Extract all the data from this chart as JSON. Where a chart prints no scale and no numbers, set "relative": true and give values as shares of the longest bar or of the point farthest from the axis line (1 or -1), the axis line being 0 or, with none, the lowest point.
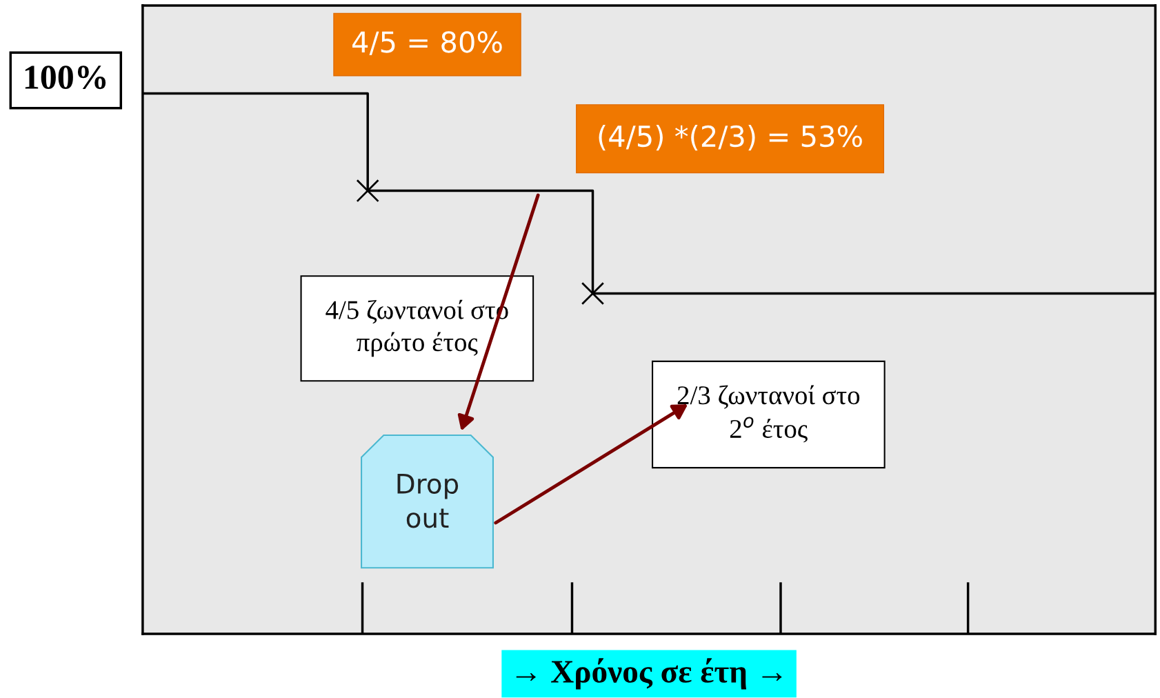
{
  "chart_data": {
    "type": "step",
    "relative": true,
    "categories": [
      null,
      null,
      null,
      null,
      null,
      null,
      null,
      null,
      null,
      null
    ],
    "xlabel": "→ Χρόνος σε έτη →",
    "series": [
      {
        "color": "#000000",
        "values": [
          1,
          1,
          0.82,
          0.82,
          0.63,
          0.63,
          0.63,
          0.63,
          0.63,
          0.63
        ]
      }
    ],
    "annotations": [
      "100%",
      "4/5 = 80%",
      "(4/5) *(2/3) = 53%",
      "4/5 ζωντανοί στο\nπρώτο έτος",
      "Drop\nout",
      "2/3 ζωντανοί στο\n2$^{o}$ έτος"
    ],
    "grid": false,
    "legend": false
  }
}
